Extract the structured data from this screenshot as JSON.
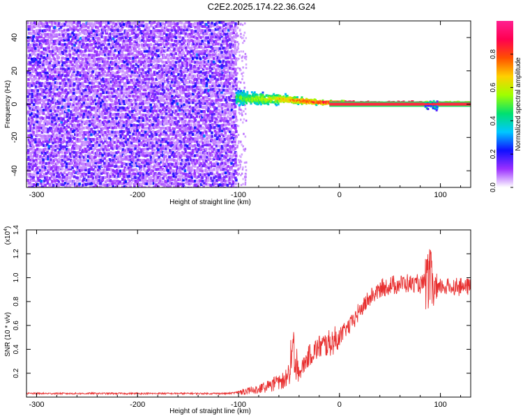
{
  "title": "C2E2.2025.174.22.36.G24",
  "chart_data": [
    {
      "type": "heatmap",
      "xlabel": "Height of straight line (km)",
      "ylabel": "Frequency (Hz)",
      "xlim": [
        -310,
        130
      ],
      "ylim": [
        -50,
        50
      ],
      "xticks": [
        -300,
        -200,
        -100,
        0,
        100
      ],
      "yticks": [
        -40,
        -20,
        0,
        20,
        40
      ],
      "colorbar": {
        "label": "Normalized spectral amplitude",
        "range": [
          0,
          1
        ],
        "ticks": [
          "0.0",
          "0.2",
          "0.4",
          "0.6",
          "0.8"
        ],
        "tick_values": [
          0.0,
          0.2,
          0.4,
          0.6,
          0.8
        ],
        "colors": [
          "#ffffff",
          "#9b30ff",
          "#1010ff",
          "#00c8ff",
          "#00e070",
          "#a0ff00",
          "#ffd000",
          "#ff5000",
          "#ff0050",
          "#ff2090"
        ]
      },
      "regions": [
        {
          "x_range": [
            -310,
            -103
          ],
          "y_range": [
            -50,
            50
          ],
          "description": "broadband noise, amplitude 0.1-0.25"
        },
        {
          "x_range": [
            -103,
            130
          ],
          "center_freq": 0,
          "description": "signal tone near 0 Hz, amplitude rising to ~1.0"
        }
      ],
      "signal_track": [
        [
          -103,
          4
        ],
        [
          -80,
          3
        ],
        [
          -60,
          3
        ],
        [
          -40,
          2
        ],
        [
          -20,
          1
        ],
        [
          0,
          1
        ],
        [
          20,
          0.5
        ],
        [
          60,
          0.5
        ],
        [
          90,
          0.5
        ],
        [
          130,
          0.5
        ]
      ]
    },
    {
      "type": "line",
      "xlabel": "Height of straight line (km)",
      "ylabel": "SNR (10 * v/v)",
      "yscale_label": "(x10",
      "yscale_exp": "4",
      "xlim": [
        -310,
        130
      ],
      "ylim": [
        0,
        1.4
      ],
      "xticks": [
        -300,
        -200,
        -100,
        0,
        100
      ],
      "yticks": [
        "0.2",
        "0.4",
        "0.6",
        "0.8",
        "1.0",
        "1.2",
        "1.4"
      ],
      "ytick_values": [
        0.2,
        0.4,
        0.6,
        0.8,
        1.0,
        1.2,
        1.4
      ],
      "color": "#e83030",
      "series": [
        {
          "x": [
            -310,
            -200,
            -110,
            -100,
            -80,
            -60,
            -50,
            -45,
            -40,
            -30,
            -20,
            -10,
            0,
            10,
            20,
            30,
            40,
            50,
            60,
            70,
            80,
            85,
            90,
            95,
            100,
            110,
            120,
            130
          ],
          "y": [
            0.03,
            0.03,
            0.03,
            0.04,
            0.07,
            0.14,
            0.2,
            0.4,
            0.2,
            0.35,
            0.42,
            0.45,
            0.5,
            0.6,
            0.72,
            0.83,
            0.9,
            0.93,
            0.95,
            0.95,
            0.94,
            0.95,
            1.0,
            0.85,
            0.93,
            0.92,
            0.93,
            0.92
          ]
        }
      ]
    }
  ]
}
